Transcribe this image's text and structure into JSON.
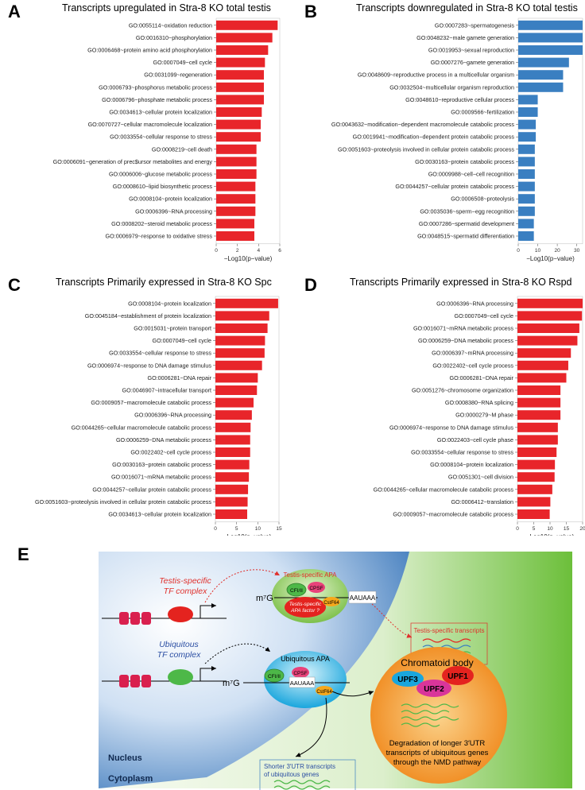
{
  "chart_data": [
    {
      "type": "bar",
      "orientation": "horizontal",
      "letter": "A",
      "title": "Transcripts upregulated in Stra-8 KO total testis",
      "xlabel": "−Log10(p−value)",
      "xlim": [
        0,
        6
      ],
      "ticks": [
        0,
        2,
        4,
        6
      ],
      "color": "#e8252a",
      "categories": [
        "GO:0055114~oxidation reduction",
        "GO:0016310~phosphorylation",
        "GO:0006468~protein amino acid phosphorylation",
        "GO:0007049~cell cycle",
        "GO:0031099~regeneration",
        "GO:0006793~phosphorus metabolic process",
        "GO:0006796~phosphate metabolic process",
        "GO:0034613~cellular protein localization",
        "GO:0070727~cellular macromolecule localization",
        "GO:0033554~cellular response to stress",
        "GO:0008219~cell death",
        "GO:0006091~generation of prec$ursor metabolites and energy",
        "GO:0006006~glucose metabolic process",
        "GO:0008610~lipid biosynthetic process",
        "GO:0008104~protein localization",
        "GO:0006396~RNA processing",
        "GO:0008202~steroid metabolic process",
        "GO:0006979~response to oxidative stress"
      ],
      "values": [
        5.8,
        5.3,
        4.9,
        4.6,
        4.5,
        4.5,
        4.5,
        4.3,
        4.2,
        4.2,
        3.8,
        3.8,
        3.8,
        3.7,
        3.7,
        3.7,
        3.6,
        3.6
      ]
    },
    {
      "type": "bar",
      "orientation": "horizontal",
      "letter": "B",
      "title": "Transcripts downregulated in Stra-8 KO total testis",
      "xlabel": "−Log10(p−value)",
      "xlim": [
        0,
        33
      ],
      "ticks": [
        0,
        10,
        20,
        30
      ],
      "color": "#3a7fc1",
      "categories": [
        "GO:0007283~spermatogenesis",
        "GO:0048232~male gamete generation",
        "GO:0019953~sexual reproduction",
        "GO:0007276~gamete generation",
        "GO:0048609~reproductive process in a multicellular organism",
        "GO:0032504~multicellular organism reproduction",
        "GO:0048610~reproductive cellular process",
        "GO:0009566~fertilization",
        "GO:0043632~modification−dependent macromolecule catabolic process",
        "GO:0019941~modification−dependent protein catabolic process",
        "GO:0051603~proteolysis involved in cellular protein catabolic process",
        "GO:0030163~protein catabolic process",
        "GO:0009988~cell−cell recognition",
        "GO:0044257~cellular protein catabolic process",
        "GO:0006508~proteolysis",
        "GO:0035036~sperm−egg recognition",
        "GO:0007286~spermatid development",
        "GO:0048515~spermatid differentiation"
      ],
      "values": [
        33,
        33,
        33,
        26,
        23,
        23,
        10,
        10,
        9,
        9,
        8.5,
        8.5,
        8.5,
        8.5,
        8.5,
        8.5,
        8,
        8
      ]
    },
    {
      "type": "bar",
      "orientation": "horizontal",
      "letter": "C",
      "title": "Transcripts Primarily expressed in Stra-8 KO Spc",
      "xlabel": "−Log10(p−value)",
      "xlim": [
        0,
        15
      ],
      "ticks": [
        0,
        5,
        10,
        15
      ],
      "color": "#e8252a",
      "categories": [
        "GO:0008104~protein localization",
        "GO:0045184~establishment of protein localization",
        "GO:0015031~protein transport",
        "GO:0007049~cell cycle",
        "GO:0033554~cellular response to stress",
        "GO:0006974~response to DNA damage stimulus",
        "GO:0006281~DNA repair",
        "GO:0046907~intracellular transport",
        "GO:0009057~macromolecule catabolic process",
        "GO:0006396~RNA processing",
        "GO:0044265~cellular macromolecule catabolic process",
        "GO:0006259~DNA metabolic process",
        "GO:0022402~cell cycle process",
        "GO:0030163~protein catabolic process",
        "GO:0016071~mRNA metabolic process",
        "GO:0044257~cellular protein catabolic process",
        "GO:0051603~proteolysis involved in cellular protein catabolic process",
        "GO:0034613~cellular protein localization"
      ],
      "values": [
        14.8,
        12.7,
        12.3,
        11.7,
        11.6,
        11.0,
        10.0,
        9.8,
        9.0,
        8.6,
        8.3,
        8.2,
        8.2,
        8.0,
        7.9,
        7.7,
        7.6,
        7.5
      ]
    },
    {
      "type": "bar",
      "orientation": "horizontal",
      "letter": "D",
      "title": "Transcripts Primarily expressed in Stra-8 KO Rspd",
      "xlabel": "−Log10(p−value)",
      "xlim": [
        0,
        20
      ],
      "ticks": [
        0,
        5,
        10,
        15,
        20
      ],
      "color": "#e8252a",
      "categories": [
        "GO:0006396~RNA processing",
        "GO:0007049~cell cycle",
        "GO:0016071~mRNA metabolic process",
        "GO:0006259~DNA metabolic process",
        "GO:0006397~mRNA processing",
        "GO:0022402~cell cycle process",
        "GO:0006281~DNA repair",
        "GO:0051276~chromosome organization",
        "GO:0008380~RNA splicing",
        "GO:0000279~M phase",
        "GO:0006974~response to DNA damage stimulus",
        "GO:0022403~cell cycle phase",
        "GO:0033554~cellular response to stress",
        "GO:0008104~protein localization",
        "GO:0051301~cell division",
        "GO:0044265~cellular macromolecule catabolic process",
        "GO:0006412~translation",
        "GO:0009057~macromolecule catabolic process"
      ],
      "values": [
        20.0,
        19.8,
        19.0,
        18.4,
        16.4,
        15.6,
        15.0,
        13.2,
        13.2,
        13.2,
        12.4,
        12.4,
        12.0,
        11.5,
        11.4,
        10.7,
        10.1,
        9.9
      ]
    }
  ],
  "diagram": {
    "letter": "E",
    "testis_tf": [
      "Testis-specific",
      "TF complex"
    ],
    "ubiq_tf": [
      "Ubiquitous",
      "TF complex"
    ],
    "m7g": "m⁷G",
    "m7g_2": "m⁷G",
    "testis_apa": "Testis-specific APA",
    "ubiq_apa": "Ubiquitous APA",
    "cfi": "CFI/II",
    "cfi_2": "CFI/II",
    "cpsf": "CPSF",
    "cpsf_2": "CPSF",
    "cstf": "CstF64",
    "cstf_2": "CstF64",
    "apa_factor": [
      "Testis-specific",
      "APA factor ?"
    ],
    "aauaaa": "AAUAAA",
    "aauaaa_2": "AAUAAA",
    "testis_transcripts": "Testis-specific transcripts",
    "chromatoid": "Chromatoid body",
    "upf1": "UPF1",
    "upf2": "UPF2",
    "upf3": "UPF3",
    "degradation": [
      "Degradation of longer 3′UTR",
      "transcripts of ubiquitous genes",
      "through the NMD pathway"
    ],
    "shorter": [
      "Shorter 3′UTR transcripts",
      "of ubiquitous genes"
    ],
    "nucleus": "Nucleus",
    "cytoplasm": "Cytoplasm"
  }
}
